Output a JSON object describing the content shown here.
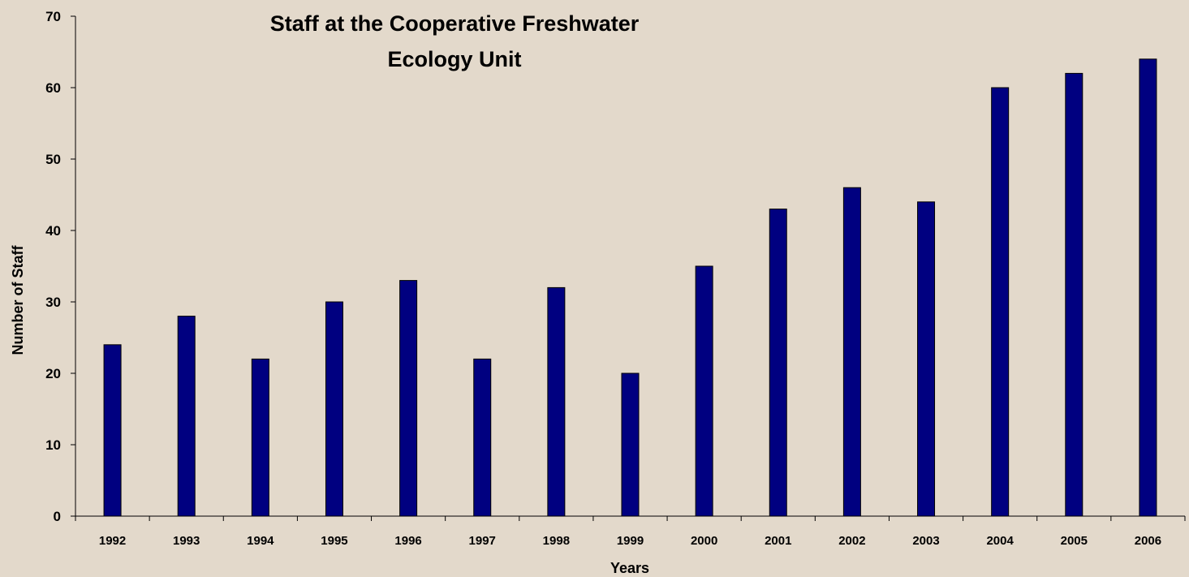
{
  "chart_data": {
    "type": "bar",
    "title_line1": "Staff at the Cooperative Freshwater",
    "title_line2": "Ecology Unit",
    "xlabel": "Years",
    "ylabel": "Number of Staff",
    "categories": [
      "1992",
      "1993",
      "1994",
      "1995",
      "1996",
      "1997",
      "1998",
      "1999",
      "2000",
      "2001",
      "2002",
      "2003",
      "2004",
      "2005",
      "2006"
    ],
    "values": [
      24,
      28,
      22,
      30,
      33,
      22,
      32,
      20,
      35,
      43,
      46,
      44,
      60,
      62,
      64
    ],
    "ylim": [
      0,
      70
    ],
    "yticks": [
      0,
      10,
      20,
      30,
      40,
      50,
      60,
      70
    ],
    "grid": false,
    "colors": {
      "bar": "#000080",
      "bar_stroke": "#000000",
      "background": "#e3d9cb"
    }
  }
}
